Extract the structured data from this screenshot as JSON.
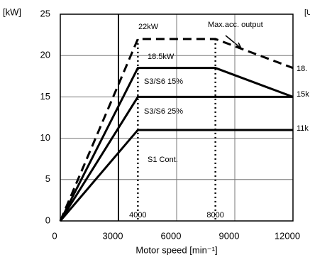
{
  "chart_data": {
    "type": "line",
    "y_label": "[kW]",
    "x_label": "Motor speed [min⁻¹]",
    "xlim": [
      0,
      12000
    ],
    "xticks": [
      0,
      3000,
      6000,
      9000,
      12000
    ],
    "ylim": [
      0,
      25
    ],
    "yticks": [
      0,
      5,
      10,
      15,
      20,
      25
    ],
    "grid": true,
    "vlines": [
      4000,
      8000
    ],
    "series": [
      {
        "name": "S1 Cont.",
        "color": "#000000",
        "style": "solid",
        "x": [
          0,
          4000,
          12000
        ],
        "values": [
          0,
          11,
          11
        ]
      },
      {
        "name": "S3/S6 25%",
        "color": "#000000",
        "style": "solid",
        "x": [
          0,
          4000,
          12000
        ],
        "values": [
          0,
          15,
          15
        ]
      },
      {
        "name": "S3/S6 15%",
        "color": "#000000",
        "style": "solid",
        "x": [
          0,
          4000,
          8000,
          12000
        ],
        "values": [
          0,
          18.5,
          18.5,
          15
        ]
      },
      {
        "name": "Max.acc. output",
        "color": "#000000",
        "style": "dashed",
        "x": [
          0,
          4000,
          8000,
          12000
        ],
        "values": [
          0,
          22,
          22,
          18.5
        ]
      }
    ],
    "annotations": [
      "22kW",
      "18.5kW",
      "18.",
      "15k",
      "11k",
      "[U"
    ]
  }
}
